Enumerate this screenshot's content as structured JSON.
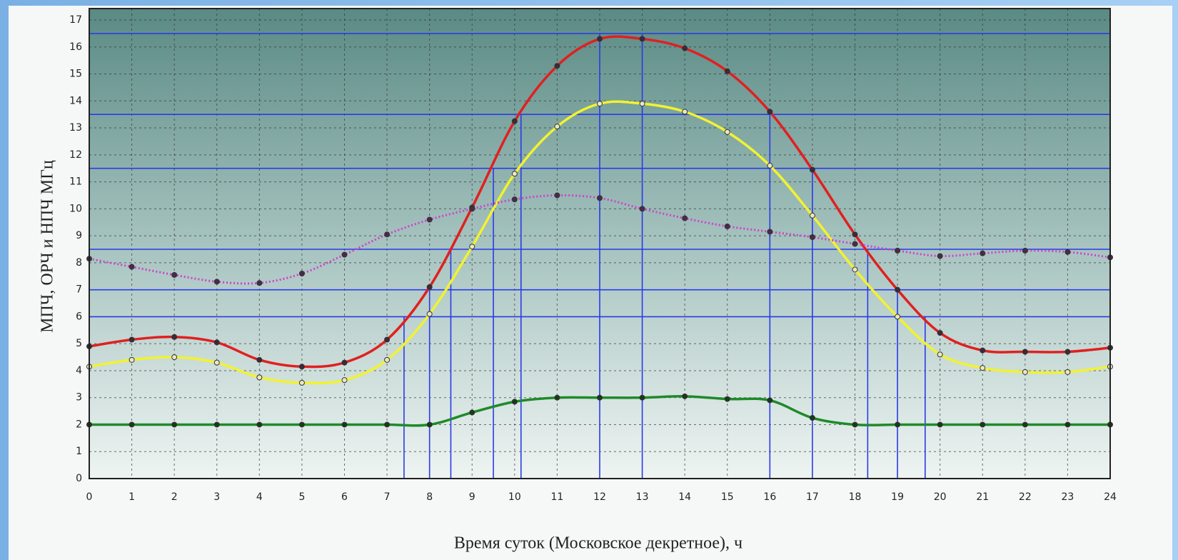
{
  "chart_data": {
    "type": "line",
    "xlabel": "Время суток (Московское декретное), ч",
    "ylabel": "МПЧ, ОРЧ и НПЧ МГц",
    "x": [
      0,
      1,
      2,
      3,
      4,
      5,
      6,
      7,
      8,
      9,
      10,
      11,
      12,
      13,
      14,
      15,
      16,
      17,
      18,
      19,
      20,
      21,
      22,
      23,
      24
    ],
    "series": [
      {
        "color": "#e02020",
        "style": "solid",
        "marker": "#3a2a3a",
        "values": [
          4.9,
          5.15,
          5.25,
          5.05,
          4.4,
          4.15,
          4.3,
          5.15,
          7.1,
          10.05,
          13.25,
          15.3,
          16.3,
          16.3,
          15.95,
          15.1,
          13.6,
          11.45,
          9.05,
          7.0,
          5.4,
          4.75,
          4.7,
          4.7,
          4.85
        ]
      },
      {
        "color": "#f2f230",
        "style": "solid",
        "marker": "#e8e8c8",
        "values": [
          4.15,
          4.4,
          4.5,
          4.3,
          3.75,
          3.55,
          3.65,
          4.4,
          6.1,
          8.6,
          11.3,
          13.05,
          13.9,
          13.9,
          13.6,
          12.85,
          11.6,
          9.75,
          7.75,
          6.0,
          4.6,
          4.1,
          3.95,
          3.95,
          4.15
        ]
      },
      {
        "color": "#d040d0",
        "style": "dotted",
        "marker": "#4a2a4a",
        "values": [
          8.15,
          7.85,
          7.55,
          7.3,
          7.25,
          7.6,
          8.3,
          9.05,
          9.6,
          10.0,
          10.35,
          10.5,
          10.4,
          10.0,
          9.65,
          9.35,
          9.15,
          8.95,
          8.7,
          8.45,
          8.25,
          8.35,
          8.45,
          8.4,
          8.2
        ]
      },
      {
        "color": "#1f8a2a",
        "style": "solid",
        "marker": "#1a3a1a",
        "values": [
          2,
          2,
          2,
          2,
          2,
          2,
          2,
          2,
          2,
          2.45,
          2.85,
          3.0,
          3.0,
          3.0,
          3.05,
          2.95,
          2.9,
          2.25,
          2.0,
          2,
          2,
          2,
          2,
          2,
          2
        ]
      }
    ],
    "hlines": [
      16.5,
      13.5,
      11.5,
      8.5,
      7,
      6
    ],
    "droplines": [
      {
        "x": 7.4,
        "y": 6
      },
      {
        "x": 8,
        "y": 7
      },
      {
        "x": 8.5,
        "y": 8.5
      },
      {
        "x": 9.5,
        "y": 11.5
      },
      {
        "x": 10.15,
        "y": 13.5
      },
      {
        "x": 12,
        "y": 16.5
      },
      {
        "x": 13,
        "y": 16.5
      },
      {
        "x": 16,
        "y": 13.5
      },
      {
        "x": 17,
        "y": 11.5
      },
      {
        "x": 18.3,
        "y": 8.5
      },
      {
        "x": 19,
        "y": 7
      },
      {
        "x": 19.65,
        "y": 6
      }
    ],
    "refcolor": "#2a3ae8",
    "xlim": [
      0,
      24
    ],
    "ylim": [
      0,
      17
    ],
    "xticks": [
      0,
      1,
      2,
      3,
      4,
      5,
      6,
      7,
      8,
      9,
      10,
      11,
      12,
      13,
      14,
      15,
      16,
      17,
      18,
      19,
      20,
      21,
      22,
      23,
      24
    ],
    "yticks": [
      0,
      1,
      2,
      3,
      4,
      5,
      6,
      7,
      8,
      9,
      10,
      11,
      12,
      13,
      14,
      15,
      16,
      17
    ],
    "grid": true
  }
}
